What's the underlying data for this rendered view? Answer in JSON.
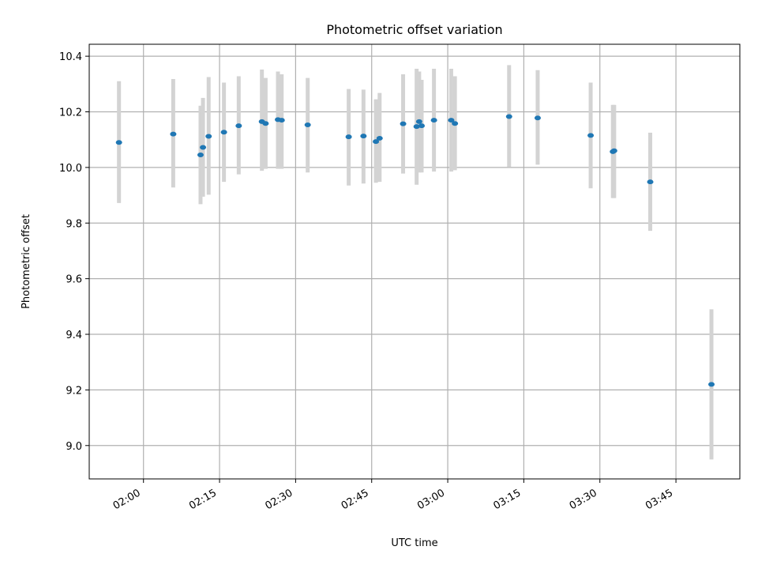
{
  "chart_data": {
    "type": "scatter",
    "title": "Photometric offset variation",
    "xlabel": "UTC time",
    "ylabel": "Photometric offset",
    "x_tick_labels": [
      "02:00",
      "02:15",
      "02:30",
      "02:45",
      "03:00",
      "03:15",
      "03:30",
      "03:45"
    ],
    "x_tick_minutes": [
      120,
      135,
      150,
      165,
      180,
      195,
      210,
      225
    ],
    "y_ticks": [
      9.0,
      9.2,
      9.4,
      9.6,
      9.8,
      10.0,
      10.2,
      10.4
    ],
    "y_tick_labels": [
      "9.0",
      "9.2",
      "9.4",
      "9.6",
      "9.8",
      "10.0",
      "10.2",
      "10.4"
    ],
    "xlim_minutes": [
      109.3,
      237.6
    ],
    "ylim": [
      8.88,
      10.443
    ],
    "grid": true,
    "colors": {
      "point": "#1f77b4",
      "errorbar": "#d3d3d3",
      "grid": "#b0b0b0"
    },
    "points": [
      {
        "t": "01:55:10",
        "y": 10.09,
        "lo": 9.872,
        "hi": 10.31
      },
      {
        "t": "02:05:52",
        "y": 10.12,
        "lo": 9.928,
        "hi": 10.318
      },
      {
        "t": "02:11:15",
        "y": 10.045,
        "lo": 9.868,
        "hi": 10.222
      },
      {
        "t": "02:11:44",
        "y": 10.072,
        "lo": 9.895,
        "hi": 10.25
      },
      {
        "t": "02:12:51",
        "y": 10.112,
        "lo": 9.902,
        "hi": 10.325
      },
      {
        "t": "02:15:52",
        "y": 10.127,
        "lo": 9.948,
        "hi": 10.305
      },
      {
        "t": "02:18:47",
        "y": 10.15,
        "lo": 9.975,
        "hi": 10.328
      },
      {
        "t": "02:23:21",
        "y": 10.165,
        "lo": 9.988,
        "hi": 10.352
      },
      {
        "t": "02:24:05",
        "y": 10.158,
        "lo": 9.995,
        "hi": 10.322
      },
      {
        "t": "02:26:31",
        "y": 10.172,
        "lo": 9.995,
        "hi": 10.345
      },
      {
        "t": "02:27:15",
        "y": 10.17,
        "lo": 9.995,
        "hi": 10.335
      },
      {
        "t": "02:32:23",
        "y": 10.153,
        "lo": 9.982,
        "hi": 10.322
      },
      {
        "t": "02:40:28",
        "y": 10.11,
        "lo": 9.935,
        "hi": 10.282
      },
      {
        "t": "02:43:23",
        "y": 10.113,
        "lo": 9.942,
        "hi": 10.28
      },
      {
        "t": "02:45:50",
        "y": 10.093,
        "lo": 9.945,
        "hi": 10.245
      },
      {
        "t": "02:46:34",
        "y": 10.105,
        "lo": 9.948,
        "hi": 10.268
      },
      {
        "t": "02:51:12",
        "y": 10.157,
        "lo": 9.978,
        "hi": 10.335
      },
      {
        "t": "02:53:52",
        "y": 10.147,
        "lo": 9.938,
        "hi": 10.355
      },
      {
        "t": "02:54:22",
        "y": 10.165,
        "lo": 9.982,
        "hi": 10.345
      },
      {
        "t": "02:54:51",
        "y": 10.15,
        "lo": 9.982,
        "hi": 10.315
      },
      {
        "t": "02:57:17",
        "y": 10.17,
        "lo": 9.985,
        "hi": 10.355
      },
      {
        "t": "03:00:41",
        "y": 10.17,
        "lo": 9.985,
        "hi": 10.355
      },
      {
        "t": "03:01:25",
        "y": 10.158,
        "lo": 9.99,
        "hi": 10.328
      },
      {
        "t": "03:12:06",
        "y": 10.183,
        "lo": 10.002,
        "hi": 10.368
      },
      {
        "t": "03:17:44",
        "y": 10.178,
        "lo": 10.01,
        "hi": 10.35
      },
      {
        "t": "03:28:11",
        "y": 10.115,
        "lo": 9.925,
        "hi": 10.305
      },
      {
        "t": "03:32:34",
        "y": 10.057,
        "lo": 9.89,
        "hi": 10.225
      },
      {
        "t": "03:32:49",
        "y": 10.06,
        "lo": 9.89,
        "hi": 10.225
      },
      {
        "t": "03:39:56",
        "y": 9.948,
        "lo": 9.772,
        "hi": 10.125
      },
      {
        "t": "03:52:00",
        "y": 9.22,
        "lo": 8.95,
        "hi": 9.49
      }
    ]
  }
}
